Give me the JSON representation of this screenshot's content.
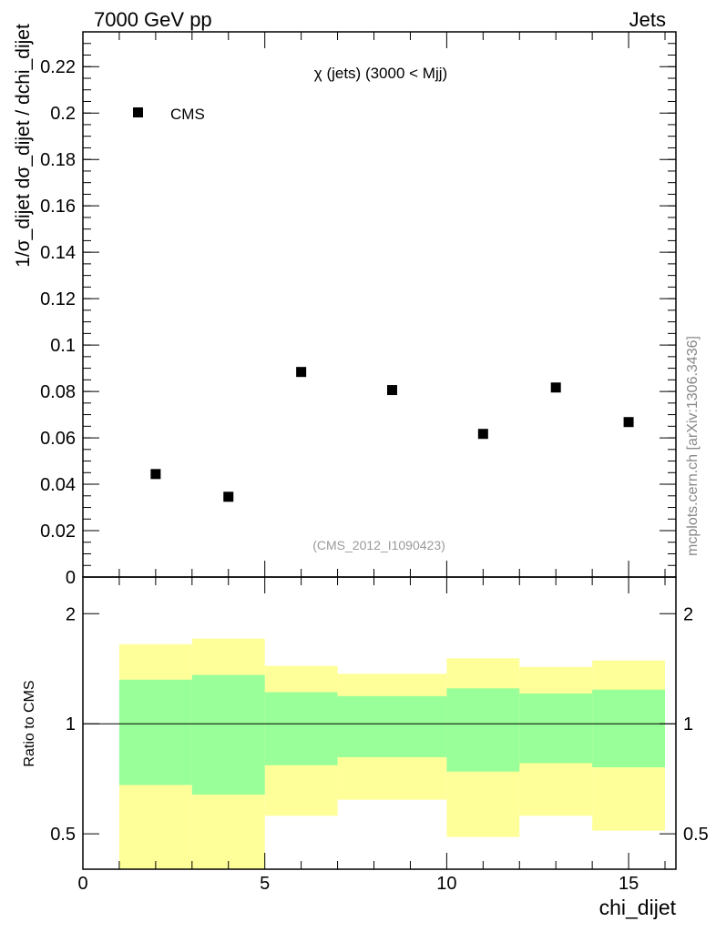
{
  "header": {
    "energy": "7000 GeV pp",
    "process": "Jets"
  },
  "side_label": "mcplots.cern.ch [arXiv:1306.3436]",
  "chart_data": [
    {
      "type": "scatter",
      "title": "χ (jets) (3000 < Mjj)",
      "analysis_label": "(CMS_2012_I1090423)",
      "ylabel": "1/σ_dijet dσ_dijet / dchi_dijet",
      "xlim": [
        0,
        16.3
      ],
      "ylim": [
        0,
        0.235
      ],
      "yticks": [
        "0",
        "0.02",
        "0.04",
        "0.06",
        "0.08",
        "0.1",
        "0.12",
        "0.14",
        "0.16",
        "0.18",
        "0.2",
        "0.22"
      ],
      "legend": [
        {
          "name": "CMS",
          "marker": "square",
          "placement": "top-left"
        }
      ],
      "series": [
        {
          "name": "CMS",
          "x": [
            2,
            4,
            6,
            8.5,
            11,
            13,
            15
          ],
          "y": [
            0.0444,
            0.0346,
            0.0884,
            0.0806,
            0.0617,
            0.0817,
            0.0668
          ]
        }
      ]
    },
    {
      "type": "area",
      "ylabel": "Ratio to CMS",
      "xlabel": "chi_dijet",
      "yscale": "log",
      "ylim": [
        0.4,
        2.52
      ],
      "xlim": [
        0,
        16.3
      ],
      "xticks": [
        "0",
        "5",
        "10",
        "15"
      ],
      "yticks": [
        "0.5",
        "1",
        "2"
      ],
      "bins": [
        [
          1,
          3
        ],
        [
          3,
          5
        ],
        [
          5,
          7
        ],
        [
          7,
          10
        ],
        [
          10,
          12
        ],
        [
          12,
          14
        ],
        [
          14,
          16
        ]
      ],
      "yellow_band": {
        "upper": [
          1.65,
          1.71,
          1.44,
          1.37,
          1.51,
          1.43,
          1.49
        ],
        "lower": [
          0.35,
          0.35,
          0.56,
          0.62,
          0.49,
          0.56,
          0.51
        ]
      },
      "green_band": {
        "upper": [
          1.32,
          1.36,
          1.22,
          1.19,
          1.25,
          1.21,
          1.24
        ],
        "lower": [
          0.68,
          0.64,
          0.77,
          0.81,
          0.74,
          0.78,
          0.76
        ]
      },
      "colors": {
        "yellow": "#ffff99",
        "green": "#99ff99"
      }
    }
  ]
}
